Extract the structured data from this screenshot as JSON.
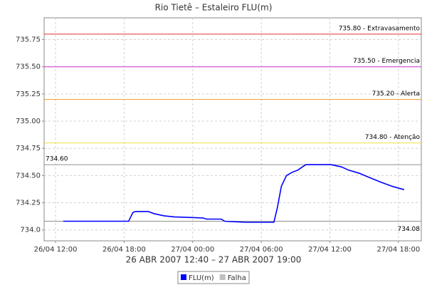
{
  "chart_data": {
    "type": "line",
    "title": "Rio Tietê – Estaleiro FLU(m)",
    "x_label": "26 ABR 2007 12:40 – 27 ABR 2007 19:00",
    "xlim": [
      "26/04 11:00",
      "27/04 20:00"
    ],
    "xticks": [
      "26/04 12:00",
      "26/04 18:00",
      "27/04 00:00",
      "27/04 06:00",
      "27/04 12:00",
      "27/04 18:00"
    ],
    "ylim": [
      733.9,
      735.95
    ],
    "yticks": [
      {
        "value": 734.0,
        "label": "734.0"
      },
      734.25,
      {
        "value": 734.5,
        "label": "734.50"
      },
      734.75,
      {
        "value": 735.0,
        "label": "735.00"
      },
      735.25,
      {
        "value": 735.5,
        "label": "735.50"
      },
      735.75
    ],
    "grid": true,
    "series": [
      {
        "name": "FLU(m)",
        "color": "#0000ff",
        "x": [
          "26/04 12:40",
          "26/04 18:24",
          "26/04 18:46",
          "26/04 19:00",
          "26/04 20:06",
          "26/04 20:36",
          "26/04 21:30",
          "26/04 22:24",
          "27/04 00:54",
          "27/04 01:12",
          "27/04 02:30",
          "27/04 02:48",
          "27/04 04:36",
          "27/04 07:06",
          "27/04 07:24",
          "27/04 07:45",
          "27/04 08:12",
          "27/04 08:42",
          "27/04 09:12",
          "27/04 09:36",
          "27/04 09:54",
          "27/04 12:06",
          "27/04 13:00",
          "27/04 13:39",
          "27/04 14:36",
          "27/04 15:30",
          "27/04 16:27",
          "27/04 17:30",
          "27/04 18:30"
        ],
        "values": [
          734.08,
          734.08,
          734.16,
          734.17,
          734.17,
          734.15,
          734.13,
          734.12,
          734.11,
          734.1,
          734.1,
          734.08,
          734.07,
          734.07,
          734.2,
          734.4,
          734.5,
          734.53,
          734.55,
          734.58,
          734.6,
          734.6,
          734.58,
          734.55,
          734.52,
          734.48,
          734.44,
          734.4,
          734.37
        ]
      }
    ],
    "legend": [
      {
        "name": "FLU(m)",
        "color": "#0000ff"
      },
      {
        "name": "Falha",
        "color": "#c0c0c0"
      }
    ],
    "thresholds": [
      {
        "value": 735.8,
        "label": "735.80 - Extravasamento",
        "color": "#e03030",
        "label_pos": "above-right"
      },
      {
        "value": 735.5,
        "label": "735.50 - Emergencia",
        "color": "#cc33cc",
        "label_pos": "above-right"
      },
      {
        "value": 735.2,
        "label": "735.20 - Alerta",
        "color": "#f0a030",
        "label_pos": "above-right"
      },
      {
        "value": 734.8,
        "label": "734.80 - Atenção",
        "color": "#f0e040",
        "label_pos": "above-right"
      },
      {
        "value": 734.6,
        "label": "734.60",
        "color": "#909090",
        "label_pos": "above-left"
      },
      {
        "value": 734.08,
        "label": "734.08",
        "color": "#909090",
        "label_pos": "below-right"
      }
    ]
  }
}
